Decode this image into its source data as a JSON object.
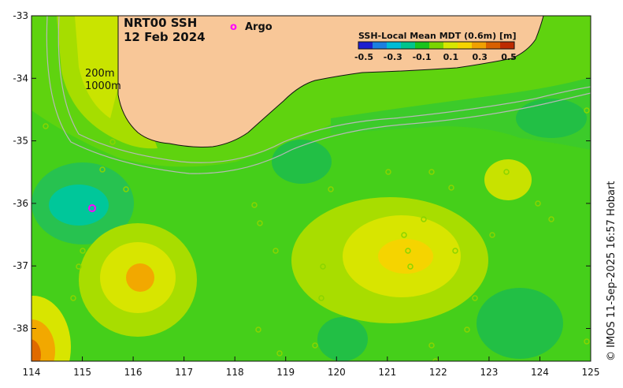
{
  "map": {
    "title_line1": "NRT00 SSH",
    "title_line2": "12 Feb 2024",
    "argo_marker": "o",
    "argo_label": "Argo",
    "isobath_labels": [
      "200m",
      "1000m"
    ],
    "colorbar": {
      "title": "SSH-Local Mean MDT (0.6m) [m]",
      "tick_labels": [
        "-0.5",
        "-0.3",
        "-0.1",
        "0.1",
        "0.3",
        "0.5"
      ],
      "colors": [
        "#1e1ecf",
        "#1c7fe0",
        "#00bcd6",
        "#00c58c",
        "#19c41c",
        "#7ad400",
        "#d7e600",
        "#f5d400",
        "#f0a000",
        "#d86000",
        "#bd2a00"
      ]
    },
    "x_tick_labels": [
      "114",
      "115",
      "116",
      "117",
      "118",
      "119",
      "120",
      "121",
      "122",
      "123",
      "124",
      "125"
    ],
    "y_tick_labels": [
      "-33",
      "-34",
      "-35",
      "-36",
      "-37",
      "-38"
    ],
    "credit": "© IMOS 11-Sep-2025 16:57 Hobart",
    "colors": {
      "land": "#f8c798",
      "ocean_base": "#45cf1a",
      "argo": "#ff00ff",
      "isobath": "#b8b8b8"
    }
  }
}
